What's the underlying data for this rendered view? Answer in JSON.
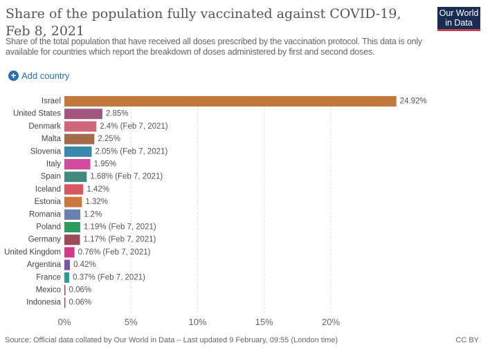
{
  "header": {
    "title": "Share of the population fully vaccinated against COVID-19, Feb 8, 2021",
    "subtitle": "Share of the total population that have received all doses prescribed by the vaccination protocol. This data is only available for countries which report the breakdown of doses administered by first and second doses.",
    "logo_line1": "Our World",
    "logo_line2": "in Data",
    "add_country_label": "Add country"
  },
  "footer": {
    "source": "Source: Official data collated by Our World in Data – Last updated 9 February, 09:55 (London time)",
    "license": "CC BY"
  },
  "chart_data": {
    "type": "bar",
    "orientation": "horizontal",
    "title": "Share of the population fully vaccinated against COVID-19, Feb 8, 2021",
    "xlabel": "",
    "ylabel": "",
    "xlim": [
      0,
      25
    ],
    "grid": true,
    "x_ticks": [
      "0%",
      "5%",
      "10%",
      "15%",
      "20%"
    ],
    "x_tick_values": [
      0,
      5,
      10,
      15,
      20
    ],
    "categories": [
      "Israel",
      "United States",
      "Denmark",
      "Malta",
      "Slovenia",
      "Italy",
      "Spain",
      "Iceland",
      "Estonia",
      "Romania",
      "Poland",
      "Germany",
      "United Kingdom",
      "Argentina",
      "France",
      "Mexico",
      "Indonesia"
    ],
    "values": [
      24.92,
      2.85,
      2.4,
      2.25,
      2.05,
      1.95,
      1.68,
      1.42,
      1.32,
      1.2,
      1.19,
      1.17,
      0.76,
      0.42,
      0.37,
      0.06,
      0.06
    ],
    "labels": [
      "24.92%",
      "2.85%",
      "2.4% (Feb 7, 2021)",
      "2.25%",
      "2.05% (Feb 7, 2021)",
      "1.95%",
      "1.68% (Feb 7, 2021)",
      "1.42%",
      "1.32%",
      "1.2%",
      "1.19% (Feb 7, 2021)",
      "1.17% (Feb 7, 2021)",
      "0.76% (Feb 7, 2021)",
      "0.42%",
      "0.37% (Feb 7, 2021)",
      "0.06%",
      "0.06%"
    ],
    "colors": [
      "#c0793a",
      "#a2557f",
      "#d0667a",
      "#a36b4a",
      "#3a87b0",
      "#d24b9f",
      "#3f8c7d",
      "#d9555f",
      "#c9773d",
      "#6b82b0",
      "#2e9a5d",
      "#9c4a55",
      "#d63a86",
      "#7a55a3",
      "#2a9a96",
      "#8a5a4a",
      "#a0554a"
    ]
  }
}
